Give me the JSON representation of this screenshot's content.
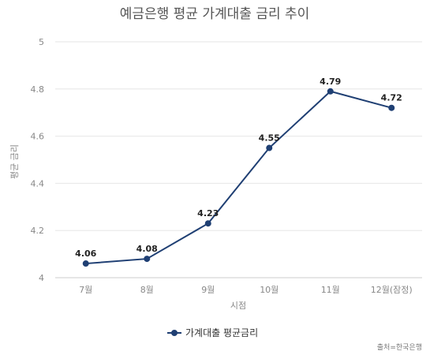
{
  "chart_data": {
    "type": "line",
    "title": "예금은행 평균 가계대출 금리 추이",
    "xlabel": "시점",
    "ylabel": "평균 금리",
    "categories": [
      "7월",
      "8월",
      "9월",
      "10월",
      "11월",
      "12월(잠정)"
    ],
    "series": [
      {
        "name": "가계대출 평균금리",
        "values": [
          4.06,
          4.08,
          4.23,
          4.55,
          4.79,
          4.72
        ],
        "labels": [
          "4.06",
          "4.08",
          "4.23",
          "4.55",
          "4.79",
          "4.72"
        ],
        "color": "#1f3f73"
      }
    ],
    "ylim": [
      4,
      5
    ],
    "yticks": [
      4,
      4.2,
      4.4,
      4.6,
      4.8,
      5
    ],
    "ytick_labels": [
      "4",
      "4.2",
      "4.4",
      "4.6",
      "4.8",
      "5"
    ],
    "grid": true,
    "legend_position": "bottom"
  },
  "source": "출처=한국은행"
}
